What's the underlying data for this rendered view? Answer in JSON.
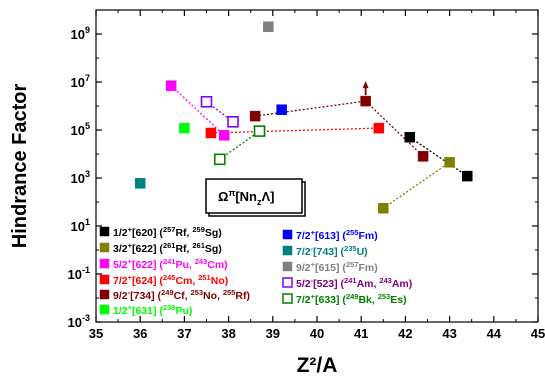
{
  "chart_data": {
    "type": "scatter",
    "xlabel": "Z²/A",
    "ylabel": "Hindrance Factor",
    "xlim": [
      35,
      45
    ],
    "ylim": [
      -3,
      10
    ],
    "yscale": "log",
    "x_ticks": [
      "35",
      "36",
      "37",
      "38",
      "39",
      "40",
      "41",
      "42",
      "43",
      "44",
      "45"
    ],
    "y_ticks": [
      {
        "v": 9,
        "b": "10",
        "e": "9"
      },
      {
        "v": 7,
        "b": "10",
        "e": "7"
      },
      {
        "v": 5,
        "b": "10",
        "e": "5"
      },
      {
        "v": 3,
        "b": "10",
        "e": "3"
      },
      {
        "v": 1,
        "b": "10",
        "e": "1"
      },
      {
        "v": -1,
        "b": "10",
        "e": "-1"
      },
      {
        "v": -3,
        "b": "10",
        "e": "-3"
      }
    ],
    "annotation": {
      "main": "Ω",
      "sup": "π",
      "bracket_open": "[Nn",
      "sub": "z",
      "bracket_close": "Λ]"
    },
    "series": [
      {
        "id": "s620",
        "color": "#000000",
        "filled": true,
        "label_color": "#000000",
        "legend": [
          {
            "t": "1/2"
          },
          {
            "t": "+",
            "s": "sup"
          },
          {
            "t": "[620] ("
          },
          {
            "t": "257",
            "s": "sup"
          },
          {
            "t": "Rf, "
          },
          {
            "t": "259",
            "s": "sup"
          },
          {
            "t": "Sg)"
          }
        ],
        "points": [
          [
            42.1,
            50000.0
          ],
          [
            43.4,
            1200.0
          ]
        ],
        "line": true
      },
      {
        "id": "s622a",
        "color": "#808000",
        "filled": true,
        "label_color": "#000000",
        "legend": [
          {
            "t": "3/2"
          },
          {
            "t": "+",
            "s": "sup"
          },
          {
            "t": "[622] ("
          },
          {
            "t": "261",
            "s": "sup"
          },
          {
            "t": "Rf, "
          },
          {
            "t": "261",
            "s": "sup"
          },
          {
            "t": "Sg)"
          }
        ],
        "points": [
          [
            41.5,
            55
          ],
          [
            43.0,
            4500.0
          ]
        ],
        "line": true
      },
      {
        "id": "s622b",
        "color": "#ff00ff",
        "filled": true,
        "label_color": "#ff00ff",
        "legend": [
          {
            "t": "5/2"
          },
          {
            "t": "+",
            "s": "sup"
          },
          {
            "t": "[622] ("
          },
          {
            "t": "241",
            "s": "sup"
          },
          {
            "t": "Pu, "
          },
          {
            "t": "243",
            "s": "sup"
          },
          {
            "t": "Cm)"
          }
        ],
        "points": [
          [
            36.7,
            7000000.0
          ],
          [
            37.9,
            60000.0
          ]
        ],
        "line": true
      },
      {
        "id": "s624",
        "color": "#ff0000",
        "filled": true,
        "label_color": "#ff0000",
        "legend": [
          {
            "t": "7/2"
          },
          {
            "t": "+",
            "s": "sup"
          },
          {
            "t": "[624] ("
          },
          {
            "t": "245",
            "s": "sup"
          },
          {
            "t": "Cm, "
          },
          {
            "t": "251",
            "s": "sup"
          },
          {
            "t": "No)"
          }
        ],
        "points": [
          [
            37.6,
            75000.0
          ],
          [
            41.4,
            120000.0
          ]
        ],
        "line": true
      },
      {
        "id": "s734",
        "color": "#800000",
        "filled": true,
        "label_color": "#800000",
        "legend": [
          {
            "t": "9/2"
          },
          {
            "t": "-",
            "s": "sup"
          },
          {
            "t": "[734] ("
          },
          {
            "t": "249",
            "s": "sup"
          },
          {
            "t": "Cf, "
          },
          {
            "t": "253",
            "s": "sup"
          },
          {
            "t": "No, "
          },
          {
            "t": "255",
            "s": "sup"
          },
          {
            "t": "Rf)"
          }
        ],
        "points": [
          [
            38.6,
            380000.0
          ],
          [
            41.1,
            1600000.0
          ],
          [
            42.4,
            8000.0
          ]
        ],
        "line": true
      },
      {
        "id": "s631",
        "color": "#00ff00",
        "filled": true,
        "label_color": "#00ff00",
        "legend": [
          {
            "t": "1/2"
          },
          {
            "t": "+",
            "s": "sup"
          },
          {
            "t": "[631] ("
          },
          {
            "t": "239",
            "s": "sup"
          },
          {
            "t": "Pu)"
          }
        ],
        "points": [
          [
            37.0,
            120000.0
          ]
        ],
        "line": false
      },
      {
        "id": "s613",
        "color": "#0000ff",
        "filled": true,
        "label_color": "#0000ff",
        "legend": [
          {
            "t": "7/2"
          },
          {
            "t": "+",
            "s": "sup"
          },
          {
            "t": "[613] ("
          },
          {
            "t": "255",
            "s": "sup"
          },
          {
            "t": "Fm)"
          }
        ],
        "points": [
          [
            39.2,
            700000.0
          ]
        ],
        "line": false
      },
      {
        "id": "s743",
        "color": "#008080",
        "filled": true,
        "label_color": "#008080",
        "legend": [
          {
            "t": "7/2"
          },
          {
            "t": "-",
            "s": "sup"
          },
          {
            "t": "[743] ("
          },
          {
            "t": "235",
            "s": "sup"
          },
          {
            "t": "U)"
          }
        ],
        "points": [
          [
            36.0,
            600
          ]
        ],
        "line": false
      },
      {
        "id": "s615",
        "color": "#808080",
        "filled": true,
        "label_color": "#808080",
        "legend": [
          {
            "t": "9/2"
          },
          {
            "t": "+",
            "s": "sup"
          },
          {
            "t": "[615] ("
          },
          {
            "t": "257",
            "s": "sup"
          },
          {
            "t": "Fm)"
          }
        ],
        "points": [
          [
            38.9,
            2000000000.0
          ]
        ],
        "line": false
      },
      {
        "id": "s523",
        "color": "#8000ff",
        "filled": false,
        "label_color": "#800080",
        "legend": [
          {
            "t": "5/2"
          },
          {
            "t": "-",
            "s": "sup"
          },
          {
            "t": "[523] ("
          },
          {
            "t": "241",
            "s": "sup"
          },
          {
            "t": "Am, "
          },
          {
            "t": "243",
            "s": "sup"
          },
          {
            "t": "Am)"
          }
        ],
        "points": [
          [
            37.5,
            1500000.0
          ],
          [
            38.1,
            220000.0
          ]
        ],
        "line": true
      },
      {
        "id": "s633",
        "color": "#008000",
        "filled": false,
        "label_color": "#008000",
        "legend": [
          {
            "t": "7/2"
          },
          {
            "t": "+",
            "s": "sup"
          },
          {
            "t": "[633] ("
          },
          {
            "t": "249",
            "s": "sup"
          },
          {
            "t": "Bk, "
          },
          {
            "t": "253",
            "s": "sup"
          },
          {
            "t": "Es)"
          }
        ],
        "points": [
          [
            37.8,
            6000.0
          ],
          [
            38.7,
            90000.0
          ]
        ],
        "line": true
      }
    ],
    "lower_limit_arrow": {
      "x": 41.1,
      "y": 1600000.0,
      "color": "#800000"
    },
    "grid": false,
    "legend_position": "bottom-inside"
  }
}
